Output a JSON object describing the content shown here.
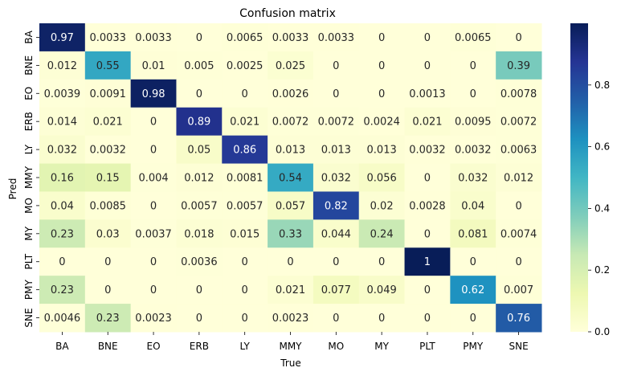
{
  "chart_data": {
    "type": "heatmap",
    "title": "Confusion matrix",
    "xlabel": "True",
    "ylabel": "Pred",
    "x_categories": [
      "BA",
      "BNE",
      "EO",
      "ERB",
      "LY",
      "MMY",
      "MO",
      "MY",
      "PLT",
      "PMY",
      "SNE"
    ],
    "y_categories": [
      "BA",
      "BNE",
      "EO",
      "ERB",
      "LY",
      "MMY",
      "MO",
      "MY",
      "PLT",
      "PMY",
      "SNE"
    ],
    "values": [
      [
        "0.97",
        "0.0033",
        "0.0033",
        "0",
        "0.0065",
        "0.0033",
        "0.0033",
        "0",
        "0",
        "0.0065",
        "0"
      ],
      [
        "0.012",
        "0.55",
        "0.01",
        "0.005",
        "0.0025",
        "0.025",
        "0",
        "0",
        "0",
        "0",
        "0.39"
      ],
      [
        "0.0039",
        "0.0091",
        "0.98",
        "0",
        "0",
        "0.0026",
        "0",
        "0",
        "0.0013",
        "0",
        "0.0078"
      ],
      [
        "0.014",
        "0.021",
        "0",
        "0.89",
        "0.021",
        "0.0072",
        "0.0072",
        "0.0024",
        "0.021",
        "0.0095",
        "0.0072"
      ],
      [
        "0.032",
        "0.0032",
        "0",
        "0.05",
        "0.86",
        "0.013",
        "0.013",
        "0.013",
        "0.0032",
        "0.0032",
        "0.0063"
      ],
      [
        "0.16",
        "0.15",
        "0.004",
        "0.012",
        "0.0081",
        "0.54",
        "0.032",
        "0.056",
        "0",
        "0.032",
        "0.012"
      ],
      [
        "0.04",
        "0.0085",
        "0",
        "0.0057",
        "0.0057",
        "0.057",
        "0.82",
        "0.02",
        "0.0028",
        "0.04",
        "0"
      ],
      [
        "0.23",
        "0.03",
        "0.0037",
        "0.018",
        "0.015",
        "0.33",
        "0.044",
        "0.24",
        "0",
        "0.081",
        "0.0074"
      ],
      [
        "0",
        "0",
        "0",
        "0.0036",
        "0",
        "0",
        "0",
        "0",
        "1",
        "0",
        "0"
      ],
      [
        "0.23",
        "0",
        "0",
        "0",
        "0",
        "0.021",
        "0.077",
        "0.049",
        "0",
        "0.62",
        "0.007"
      ],
      [
        "0.0046",
        "0.23",
        "0.0023",
        "0",
        "0",
        "0.0023",
        "0",
        "0",
        "0",
        "0",
        "0.76"
      ]
    ],
    "colorbar": {
      "colormap": "YlGnBu",
      "range": [
        0,
        1
      ],
      "ticks": [
        0.0,
        0.2,
        0.4,
        0.6,
        0.8
      ],
      "tick_labels": [
        "0.0",
        "0.2",
        "0.4",
        "0.6",
        "0.8"
      ]
    },
    "grid": false,
    "legend": "none"
  }
}
